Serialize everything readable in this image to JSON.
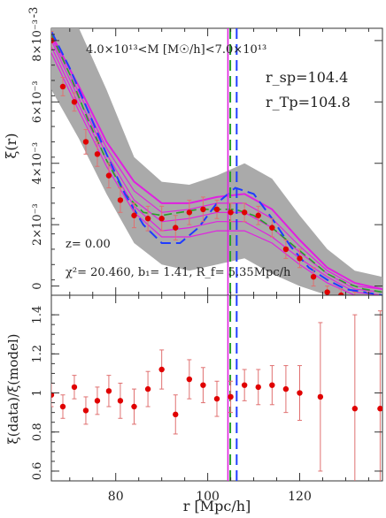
{
  "chart_data": [
    {
      "type": "line",
      "panel": "top",
      "xlabel": "",
      "ylabel": "ξ(r)",
      "xlim": [
        66,
        138
      ],
      "ylim": [
        -0.0003,
        0.0084
      ],
      "y_exponent_label": "-3",
      "yticks": [
        {
          "value": 0.0,
          "label": "0"
        },
        {
          "value": 0.002,
          "label": "2×10⁻³"
        },
        {
          "value": 0.004,
          "label": "4×10⁻³"
        },
        {
          "value": 0.006,
          "label": "6×10⁻³"
        },
        {
          "value": 0.008,
          "label": "8×10⁻³"
        }
      ],
      "annotations": {
        "mass_range": "4.0×10¹³<M [M☉/h]<7.0×10¹³",
        "rsp": "r_sp=104.4",
        "rtp": "r_Tp=104.8",
        "redshift": "z=  0.00",
        "fit": "χ²=  20.460, b₁= 1.41, R_f= 5.35Mpc/h"
      },
      "vertical_lines": [
        {
          "x": 104.4,
          "color": "#e020e0",
          "style": "solid"
        },
        {
          "x": 104.9,
          "color": "#2aa02a",
          "style": "dash"
        },
        {
          "x": 106.3,
          "color": "#1f3cff",
          "style": "dash"
        }
      ],
      "colors": {
        "band": "#aaaaaa",
        "model": "#e020e0",
        "linear": "#1f3cff",
        "nonlinear": "#2aa02a",
        "data": "#e00000",
        "errorbar": "#e07070"
      },
      "band": {
        "x": [
          66,
          72,
          78,
          84,
          90,
          96,
          102,
          108,
          114,
          120,
          126,
          132,
          138
        ],
        "lower": [
          0.0064,
          0.0048,
          0.003,
          0.0014,
          0.0007,
          0.0005,
          0.0007,
          0.0009,
          0.0004,
          0.0,
          -0.0003,
          -0.0003,
          -0.0003
        ],
        "upper": [
          0.0084,
          0.0084,
          0.0064,
          0.0042,
          0.0034,
          0.0033,
          0.0036,
          0.004,
          0.0035,
          0.0023,
          0.0012,
          0.0005,
          0.0003
        ]
      },
      "model_lines": [
        [
          0.008,
          0.0061,
          0.0043,
          0.0028,
          0.0021,
          0.0022,
          0.0024,
          0.0024,
          0.0019,
          0.0011,
          0.0004,
          -0.0001,
          -0.0002
        ],
        [
          0.0081,
          0.0063,
          0.0045,
          0.0031,
          0.0024,
          0.0025,
          0.0027,
          0.0027,
          0.0022,
          0.0013,
          0.0005,
          0.0,
          -0.0001
        ],
        [
          0.0082,
          0.0065,
          0.0047,
          0.0034,
          0.0027,
          0.0027,
          0.0029,
          0.003,
          0.0025,
          0.0015,
          0.0006,
          0.0001,
          -0.0001
        ],
        [
          0.0076,
          0.0057,
          0.0039,
          0.0024,
          0.0016,
          0.0016,
          0.0018,
          0.0018,
          0.0014,
          0.0007,
          0.0001,
          -0.0003,
          -0.0003
        ],
        [
          0.0078,
          0.0059,
          0.0041,
          0.0026,
          0.0018,
          0.0019,
          0.0021,
          0.0021,
          0.0016,
          0.0009,
          0.0003,
          -0.0002,
          -0.0003
        ]
      ],
      "linear_dashed": {
        "x": [
          66,
          70,
          74,
          78,
          82,
          86,
          90,
          94,
          98,
          102,
          106,
          110,
          114,
          118,
          122,
          126,
          130,
          134,
          138
        ],
        "y": [
          0.0083,
          0.0071,
          0.0057,
          0.0043,
          0.003,
          0.002,
          0.0014,
          0.0014,
          0.0019,
          0.0027,
          0.0032,
          0.003,
          0.0022,
          0.0013,
          0.0006,
          0.0002,
          -0.0001,
          -0.0002,
          -0.0003
        ]
      },
      "nonlinear_dashed": {
        "x": [
          66,
          70,
          74,
          78,
          82,
          86,
          90,
          94,
          98,
          102,
          106,
          110,
          114,
          118,
          122,
          126,
          130,
          134,
          138
        ],
        "y": [
          0.0082,
          0.0069,
          0.0054,
          0.0041,
          0.003,
          0.0024,
          0.0023,
          0.0024,
          0.0025,
          0.0025,
          0.0025,
          0.0023,
          0.0019,
          0.0014,
          0.0009,
          0.0004,
          0.0001,
          -0.0001,
          -0.0002
        ]
      },
      "data_points": {
        "x": [
          66,
          68.5,
          71,
          73.5,
          76,
          78.5,
          81,
          84,
          87,
          90,
          93,
          96,
          99,
          102,
          105,
          108,
          111,
          114,
          117,
          120,
          123,
          126,
          129,
          132,
          135
        ],
        "y": [
          0.008,
          0.0065,
          0.006,
          0.0047,
          0.0043,
          0.0036,
          0.0028,
          0.0023,
          0.0022,
          0.0022,
          0.0019,
          0.0024,
          0.0025,
          0.0025,
          0.0024,
          0.0024,
          0.0023,
          0.0019,
          0.0012,
          0.0009,
          0.0003,
          -0.0002,
          -0.0003,
          -0.0004,
          -0.0004
        ],
        "err": [
          0.0003,
          0.0003,
          0.0003,
          0.0004,
          0.0004,
          0.0004,
          0.0004,
          0.0004,
          0.0004,
          0.0004,
          0.0004,
          0.0004,
          0.0004,
          0.0003,
          0.0003,
          0.0003,
          0.0003,
          0.0003,
          0.0003,
          0.0003,
          0.0003,
          0.0002,
          0.0002,
          0.0002,
          0.0002
        ]
      }
    },
    {
      "type": "scatter",
      "panel": "bottom",
      "xlabel": "r [Mpc/h]",
      "ylabel": "ξ(data)/ξ(model)",
      "xlim": [
        66,
        138
      ],
      "ylim": [
        0.55,
        1.5
      ],
      "xticks": [
        {
          "value": 80,
          "label": "80"
        },
        {
          "value": 100,
          "label": "100"
        },
        {
          "value": 120,
          "label": "120"
        }
      ],
      "yticks": [
        {
          "value": 0.6,
          "label": "0.6"
        },
        {
          "value": 0.8,
          "label": "0.8"
        },
        {
          "value": 1.0,
          "label": "1"
        },
        {
          "value": 1.2,
          "label": "1.2"
        },
        {
          "value": 1.4,
          "label": "1.4"
        }
      ],
      "vertical_lines": [
        {
          "x": 104.4,
          "color": "#e020e0",
          "style": "solid"
        },
        {
          "x": 104.9,
          "color": "#2aa02a",
          "style": "dash"
        },
        {
          "x": 106.3,
          "color": "#1f3cff",
          "style": "dash"
        }
      ],
      "ratio_points": {
        "x": [
          66,
          68.5,
          71,
          73.5,
          76,
          78.5,
          81,
          84,
          87,
          90,
          93,
          96,
          99,
          102,
          105,
          108,
          111,
          114,
          117,
          120,
          124.5,
          132,
          137.5
        ],
        "y": [
          0.99,
          0.93,
          1.03,
          0.91,
          0.96,
          1.01,
          0.96,
          0.93,
          1.02,
          1.12,
          0.89,
          1.07,
          1.04,
          0.97,
          0.98,
          1.04,
          1.03,
          1.04,
          1.02,
          1.0,
          0.98,
          0.92,
          0.92
        ],
        "err": [
          0.06,
          0.06,
          0.06,
          0.07,
          0.07,
          0.08,
          0.09,
          0.09,
          0.09,
          0.1,
          0.1,
          0.1,
          0.09,
          0.09,
          0.08,
          0.08,
          0.09,
          0.1,
          0.12,
          0.14,
          0.38,
          0.48,
          0.5
        ]
      }
    }
  ]
}
